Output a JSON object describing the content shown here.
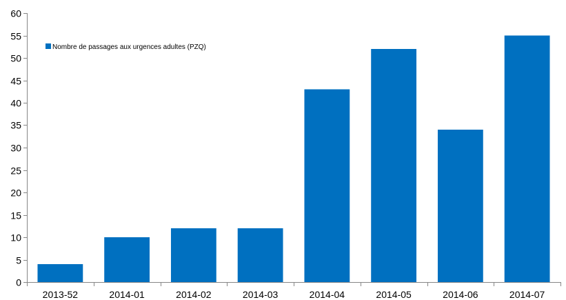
{
  "chart_data": {
    "type": "bar",
    "categories": [
      "2013-52",
      "2014-01",
      "2014-02",
      "2014-03",
      "2014-04",
      "2014-05",
      "2014-06",
      "2014-07"
    ],
    "series": [
      {
        "name": "Nombre de passages aux urgences adultes (PZQ)",
        "values": [
          4,
          10,
          12,
          12,
          43,
          52,
          34,
          55
        ],
        "color": "#0070C0"
      }
    ],
    "ylim": [
      0,
      60
    ],
    "yticks": [
      0,
      5,
      10,
      15,
      20,
      25,
      30,
      35,
      40,
      45,
      50,
      55,
      60
    ],
    "legend_position": "top-left",
    "grid": false
  }
}
